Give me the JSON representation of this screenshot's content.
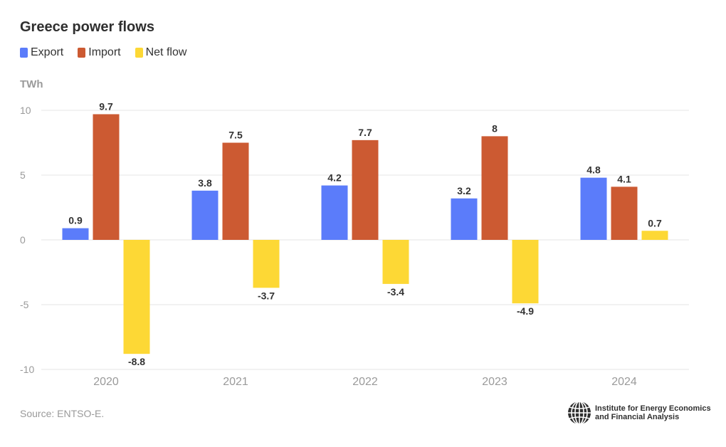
{
  "title": "Greece power flows",
  "unit_label": "TWh",
  "source": "Source: ENTSO-E.",
  "logo": {
    "line1": "Institute for Energy Economics",
    "line2": "and Financial Analysis"
  },
  "colors": {
    "export": "#5b7cfa",
    "import": "#cc5a32",
    "net": "#fdd835",
    "grid": "#e6e6e6",
    "tick": "#9a9a9a",
    "label": "#333333"
  },
  "chart_data": {
    "type": "bar",
    "title": "Greece power flows",
    "ylabel": "TWh",
    "xlabel": "",
    "categories": [
      "2020",
      "2021",
      "2022",
      "2023",
      "2024"
    ],
    "series": [
      {
        "name": "Export",
        "key": "export",
        "values": [
          0.9,
          3.8,
          4.2,
          3.2,
          4.8
        ]
      },
      {
        "name": "Import",
        "key": "import",
        "values": [
          9.7,
          7.5,
          7.7,
          8,
          4.1
        ]
      },
      {
        "name": "Net flow",
        "key": "net",
        "values": [
          -8.8,
          -3.7,
          -3.4,
          -4.9,
          0.7
        ]
      }
    ],
    "ylim": [
      -10,
      10
    ],
    "yticks": [
      10,
      5,
      0,
      -5,
      -10
    ],
    "grid": true,
    "legend": "top-left"
  }
}
